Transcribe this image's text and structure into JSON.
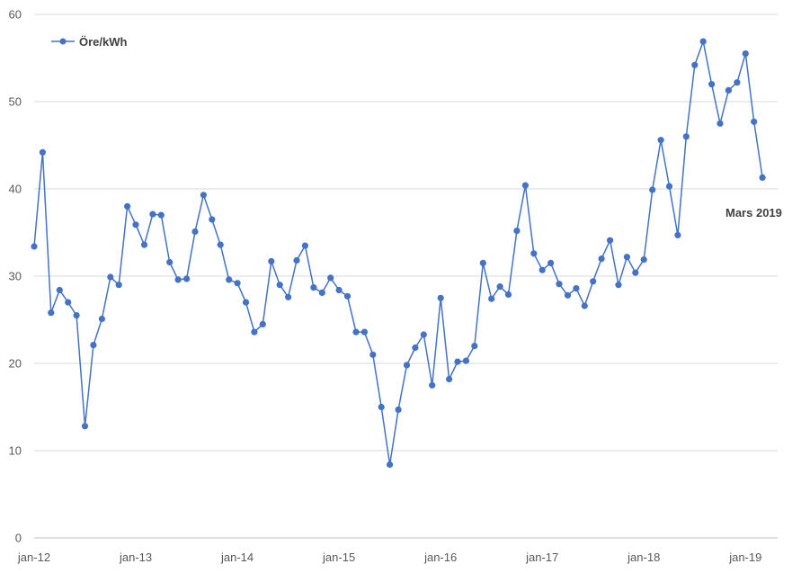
{
  "chart_data": {
    "type": "line",
    "title": "",
    "xlabel": "",
    "ylabel": "",
    "ylim": [
      0,
      60
    ],
    "yticks": [
      "0",
      "10",
      "20",
      "30",
      "40",
      "50",
      "60"
    ],
    "xtick_labels": [
      "jan-12",
      "jan-13",
      "jan-14",
      "jan-15",
      "jan-16",
      "jan-17",
      "jan-18",
      "jan-19"
    ],
    "grid": true,
    "legend": "top-left",
    "annotation": "Mars 2019",
    "series": [
      {
        "name": "Öre/kWh",
        "color": "#4472c4",
        "values": [
          33.4,
          44.2,
          25.8,
          28.4,
          27.0,
          25.5,
          12.8,
          22.1,
          25.1,
          29.9,
          29.0,
          38.0,
          35.9,
          33.6,
          37.1,
          37.0,
          31.6,
          29.6,
          29.7,
          35.1,
          39.3,
          36.5,
          33.6,
          29.6,
          29.2,
          27.0,
          23.6,
          24.5,
          31.7,
          29.0,
          27.6,
          31.8,
          33.5,
          28.7,
          28.1,
          29.8,
          28.4,
          27.7,
          23.6,
          23.6,
          21.0,
          15.0,
          8.4,
          14.7,
          19.8,
          21.8,
          23.3,
          17.5,
          27.5,
          18.2,
          20.2,
          20.3,
          22.0,
          31.5,
          27.4,
          28.8,
          27.9,
          35.2,
          40.4,
          32.6,
          30.7,
          31.5,
          29.1,
          27.8,
          28.6,
          26.6,
          29.4,
          32.0,
          34.1,
          29.0,
          32.2,
          30.4,
          31.9,
          39.9,
          45.6,
          40.3,
          34.7,
          46.0,
          54.2,
          56.9,
          52.0,
          47.5,
          51.3,
          52.2,
          55.5,
          47.7,
          41.3
        ]
      }
    ]
  }
}
